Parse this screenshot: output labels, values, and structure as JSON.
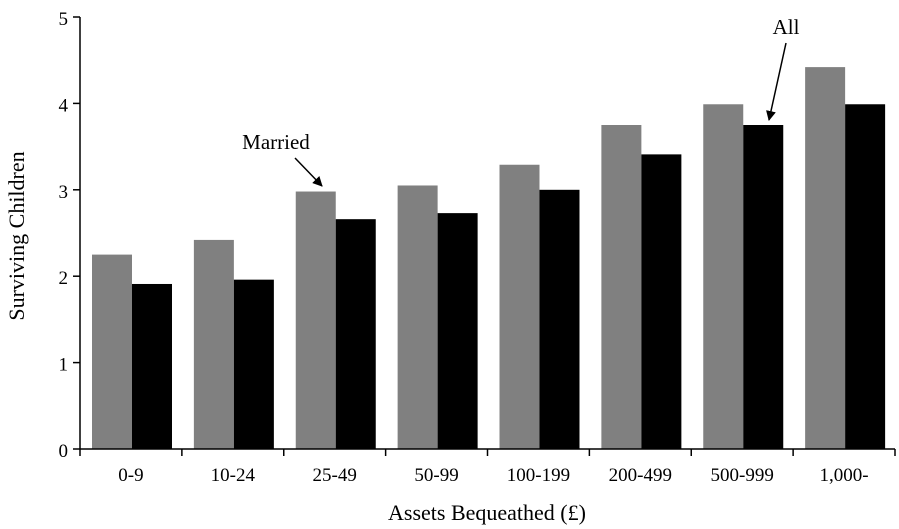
{
  "chart_data": {
    "type": "bar",
    "title": "",
    "xlabel": "Assets Bequeathed (£)",
    "ylabel": "Surviving Children",
    "ylim": [
      0,
      5
    ],
    "yticks": [
      0,
      1,
      2,
      3,
      4,
      5
    ],
    "categories": [
      "0-9",
      "10-24",
      "25-49",
      "50-99",
      "100-199",
      "200-499",
      "500-999",
      "1,000-"
    ],
    "series": [
      {
        "name": "Married",
        "color": "#808080",
        "values": [
          2.25,
          2.42,
          2.98,
          3.05,
          3.29,
          3.75,
          3.99,
          4.42
        ]
      },
      {
        "name": "All",
        "color": "#000000",
        "values": [
          1.91,
          1.96,
          2.66,
          2.73,
          3.0,
          3.41,
          3.75,
          3.99
        ]
      }
    ],
    "annotations": [
      {
        "text": "Married",
        "series": "Married",
        "category": "25-49"
      },
      {
        "text": "All",
        "series": "All",
        "category": "500-999"
      }
    ],
    "legend": "none",
    "grid": false
  }
}
